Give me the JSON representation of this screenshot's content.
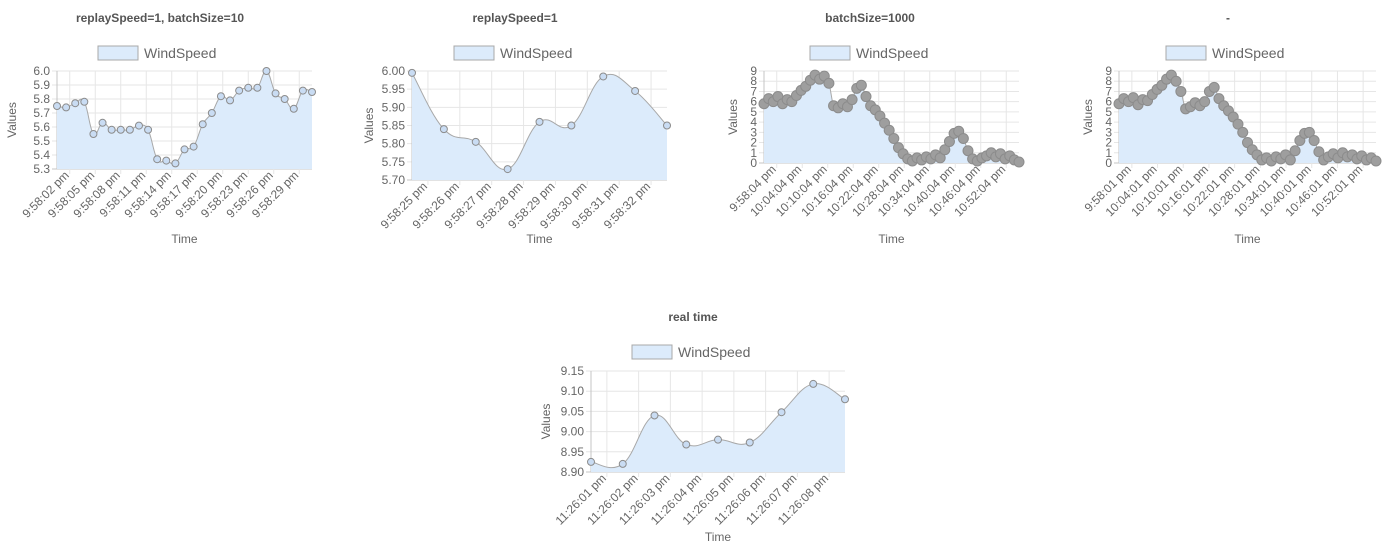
{
  "colors": {
    "fill": "#dcebfb",
    "line": "#a8a8a8",
    "point_fill": "#c9dcf3",
    "point_stroke": "#8c8c8c",
    "grid": "#e6e6e6",
    "axis": "#c4c4c4",
    "text": "#666666",
    "title": "#555555"
  },
  "chart_data": [
    {
      "type": "area",
      "title": "replaySpeed=1, batchSize=10",
      "legend": "WindSpeed",
      "xlabel": "Time",
      "ylabel": "Values",
      "ylim": [
        5.3,
        6.0
      ],
      "yticks": [
        "6.0",
        "5.9",
        "5.8",
        "5.7",
        "5.6",
        "5.5",
        "5.4",
        "5.3"
      ],
      "xticks": [
        "9:58:02 pm",
        "9:58:05 pm",
        "9:58:08 pm",
        "9:58:11 pm",
        "9:58:14 pm",
        "9:58:17 pm",
        "9:58:20 pm",
        "9:58:23 pm",
        "9:58:26 pm",
        "9:58:29 pm"
      ],
      "series": [
        {
          "name": "WindSpeed",
          "values": [
            5.75,
            5.74,
            5.77,
            5.78,
            5.55,
            5.63,
            5.58,
            5.58,
            5.58,
            5.61,
            5.58,
            5.37,
            5.36,
            5.34,
            5.44,
            5.46,
            5.62,
            5.7,
            5.82,
            5.79,
            5.86,
            5.88,
            5.88,
            6.0,
            5.84,
            5.8,
            5.73,
            5.86,
            5.85
          ]
        }
      ]
    },
    {
      "type": "area",
      "title": "replaySpeed=1",
      "legend": "WindSpeed",
      "xlabel": "Time",
      "ylabel": "Values",
      "ylim": [
        5.7,
        6.0
      ],
      "yticks": [
        "6.00",
        "5.95",
        "5.90",
        "5.85",
        "5.80",
        "5.75",
        "5.70"
      ],
      "xticks": [
        "9:58:25 pm",
        "9:58:26 pm",
        "9:58:27 pm",
        "9:58:28 pm",
        "9:58:29 pm",
        "9:58:30 pm",
        "9:58:31 pm",
        "9:58:32 pm"
      ],
      "series": [
        {
          "name": "WindSpeed",
          "values": [
            5.995,
            5.84,
            5.805,
            5.73,
            5.86,
            5.85,
            5.985,
            5.945,
            5.85
          ]
        }
      ]
    },
    {
      "type": "area",
      "title": "batchSize=1000",
      "legend": "WindSpeed",
      "xlabel": "Time",
      "ylabel": "Values",
      "ylim": [
        0,
        9
      ],
      "yticks": [
        "9",
        "8",
        "7",
        "6",
        "5",
        "4",
        "3",
        "2",
        "1",
        "0"
      ],
      "xticks": [
        "9:58:04 pm",
        "10:04:04 pm",
        "10:10:04 pm",
        "10:16:04 pm",
        "10:22:04 pm",
        "10:28:04 pm",
        "10:34:04 pm",
        "10:40:04 pm",
        "10:46:04 pm",
        "10:52:04 pm"
      ],
      "series": [
        {
          "name": "WindSpeed",
          "values": [
            5.8,
            6.3,
            6.0,
            6.5,
            5.8,
            6.2,
            6.0,
            6.6,
            7.1,
            7.5,
            8.1,
            8.6,
            8.2,
            8.5,
            7.8,
            5.6,
            5.4,
            5.8,
            5.5,
            6.2,
            7.3,
            7.6,
            6.5,
            5.6,
            5.2,
            4.6,
            3.9,
            3.2,
            2.4,
            1.5,
            0.9,
            0.4,
            0.2,
            0.5,
            0.3,
            0.6,
            0.4,
            0.8,
            0.5,
            1.3,
            2.1,
            2.9,
            3.1,
            2.4,
            1.2,
            0.4,
            0.2,
            0.5,
            0.7,
            1.0,
            0.6,
            0.9,
            0.4,
            0.7,
            0.3,
            0.1
          ]
        }
      ]
    },
    {
      "type": "area",
      "title": "-",
      "legend": "WindSpeed",
      "xlabel": "Time",
      "ylabel": "Values",
      "ylim": [
        0,
        9
      ],
      "yticks": [
        "9",
        "8",
        "7",
        "6",
        "5",
        "4",
        "3",
        "2",
        "1",
        "0"
      ],
      "xticks": [
        "9:58:01 pm",
        "10:04:01 pm",
        "10:10:01 pm",
        "10:16:01 pm",
        "10:22:01 pm",
        "10:28:01 pm",
        "10:34:01 pm",
        "10:40:01 pm",
        "10:46:01 pm",
        "10:52:01 pm"
      ],
      "series": [
        {
          "name": "WindSpeed",
          "values": [
            5.8,
            6.3,
            6.0,
            6.4,
            5.7,
            6.2,
            6.1,
            6.7,
            7.2,
            7.6,
            8.2,
            8.6,
            8.0,
            7.0,
            5.3,
            5.5,
            5.9,
            5.6,
            6.0,
            7.0,
            7.4,
            6.3,
            5.6,
            5.1,
            4.5,
            3.8,
            3.0,
            2.0,
            1.3,
            0.8,
            0.3,
            0.5,
            0.2,
            0.6,
            0.4,
            0.8,
            0.3,
            1.2,
            2.2,
            2.9,
            3.0,
            2.2,
            1.1,
            0.3,
            0.6,
            0.9,
            0.5,
            1.0,
            0.6,
            0.8,
            0.4,
            0.7,
            0.3,
            0.5,
            0.2
          ]
        }
      ]
    },
    {
      "type": "area",
      "title": "real time",
      "legend": "WindSpeed",
      "xlabel": "Time",
      "ylabel": "Values",
      "ylim": [
        8.9,
        9.15
      ],
      "yticks": [
        "9.15",
        "9.10",
        "9.05",
        "9.00",
        "8.95",
        "8.90"
      ],
      "xticks": [
        "11:26:01 pm",
        "11:26:02 pm",
        "11:26:03 pm",
        "11:26:04 pm",
        "11:26:05 pm",
        "11:26:06 pm",
        "11:26:07 pm",
        "11:26:08 pm"
      ],
      "series": [
        {
          "name": "WindSpeed",
          "values": [
            8.925,
            8.92,
            9.04,
            8.968,
            8.98,
            8.973,
            9.048,
            9.118,
            9.08
          ]
        }
      ]
    }
  ]
}
